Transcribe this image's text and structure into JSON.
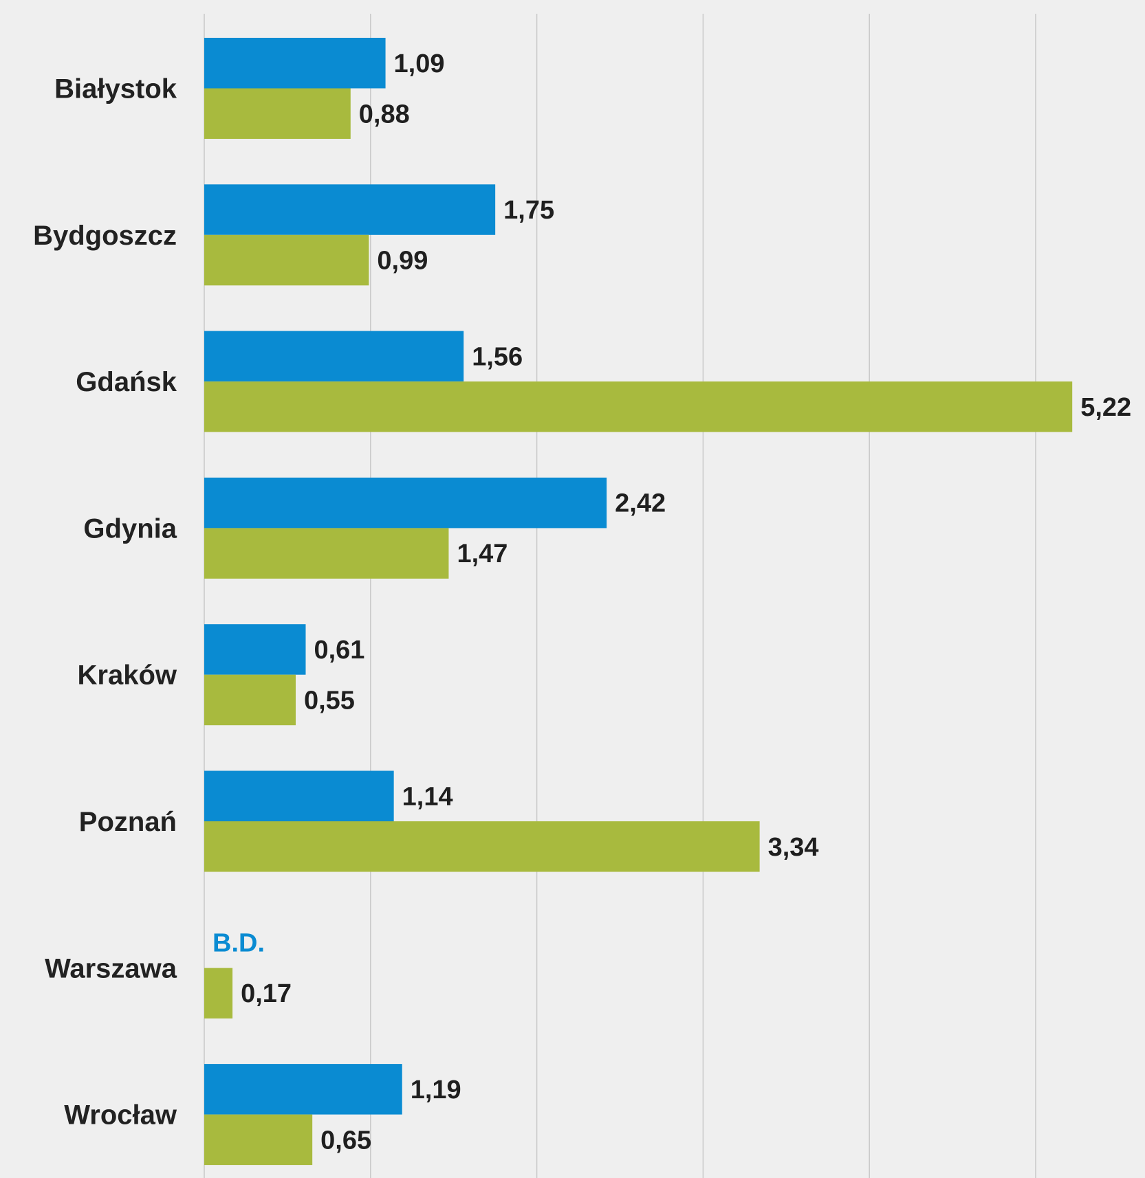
{
  "chart_data": {
    "type": "bar",
    "orientation": "horizontal",
    "title": "",
    "xlabel": "",
    "ylabel": "",
    "xlim": [
      0,
      5.5
    ],
    "grid": true,
    "categories": [
      "Białystok",
      "Bydgoszcz",
      "Gdańsk",
      "Gdynia",
      "Kraków",
      "Poznań",
      "Warszawa",
      "Wrocław"
    ],
    "series": [
      {
        "color": "#0a8bd2",
        "values": [
          1.09,
          1.75,
          1.56,
          2.42,
          0.61,
          1.14,
          null,
          1.19
        ],
        "labels": [
          "1,09",
          "1,75",
          "1,56",
          "2,42",
          "0,61",
          "1,14",
          "B.D.",
          "1,19"
        ]
      },
      {
        "color": "#a8ba3e",
        "values": [
          0.88,
          0.99,
          5.22,
          1.47,
          0.55,
          3.34,
          0.17,
          0.65
        ],
        "labels": [
          "0,88",
          "0,99",
          "5,22",
          "1,47",
          "0,55",
          "3,34",
          "0,17",
          "0,65"
        ]
      }
    ]
  },
  "colors": {
    "background": "#efefef",
    "gridline": "#c9c9c9",
    "label_text": "#222222",
    "no_data_text": "#0a8bd2"
  }
}
